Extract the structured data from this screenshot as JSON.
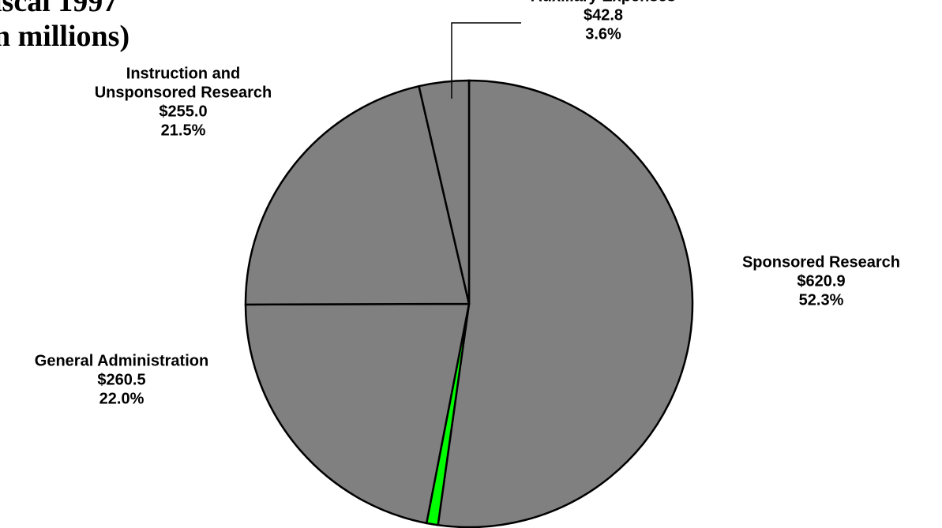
{
  "chart_data": {
    "type": "pie",
    "title_lines": [
      "iscal 1997",
      "n millions)"
    ],
    "slices": [
      {
        "name_lines": [
          "Sponsored Research"
        ],
        "value_label": "$620.9",
        "percent_label": "52.3%",
        "value": 620.9,
        "percent": 52.3,
        "color": "#808080"
      },
      {
        "name_lines": [],
        "value_label": "",
        "percent_label": "",
        "value": 9.8,
        "percent": 0.8,
        "color": "#00ff00"
      },
      {
        "name_lines": [
          "General Administration"
        ],
        "value_label": "$260.5",
        "percent_label": "22.0%",
        "value": 260.5,
        "percent": 22.0,
        "color": "#808080"
      },
      {
        "name_lines": [
          "Instruction and",
          "Unsponsored Research"
        ],
        "value_label": "$255.0",
        "percent_label": "21.5%",
        "value": 255.0,
        "percent": 21.5,
        "color": "#808080"
      },
      {
        "name_lines": [
          "Auxiliary Expenses"
        ],
        "value_label": "$42.8",
        "percent_label": "3.6%",
        "value": 42.8,
        "percent": 3.6,
        "color": "#808080"
      }
    ],
    "start_angle": "12 o'clock",
    "direction": "clockwise",
    "outline_color": "#000000"
  }
}
